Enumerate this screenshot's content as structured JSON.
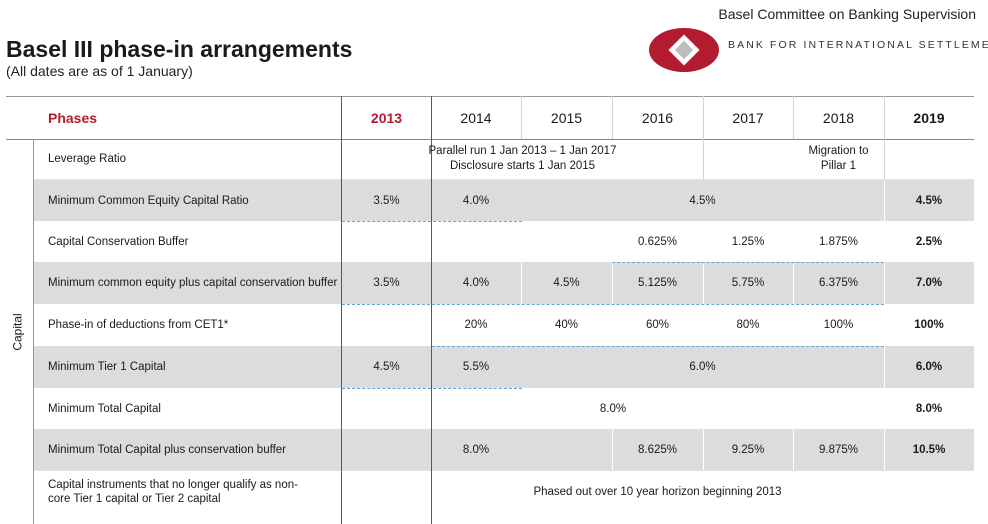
{
  "header": {
    "committee": "Basel Committee on Banking Supervision",
    "bis": "BANK FOR INTERNATIONAL SETTLEMENTS",
    "title": "Basel III phase-in arrangements",
    "subtitle": "(All dates are as of 1 January)",
    "colors": {
      "accent": "#b31b30",
      "band": "#dcdcdc",
      "dash": "#5aa7d8"
    }
  },
  "table": {
    "phases_label": "Phases",
    "years": [
      "2013",
      "2014",
      "2015",
      "2016",
      "2017",
      "2018",
      "2019"
    ],
    "group_label": "Capital",
    "rows": [
      {
        "label": "Leverage Ratio",
        "spans": [
          "Parallel run 1 Jan 2013 – 1 Jan 2017\nDisclosure starts 1 Jan 2015",
          "Migration to\nPillar 1"
        ]
      },
      {
        "label": "Minimum Common Equity Capital Ratio",
        "values": [
          "3.5%",
          "4.0%",
          "4.5%"
        ],
        "final": "4.5%"
      },
      {
        "label": "Capital Conservation Buffer",
        "values": [
          "0.625%",
          "1.25%",
          "1.875%"
        ],
        "final": "2.5%"
      },
      {
        "label": "Minimum common equity plus capital conservation buffer",
        "values": [
          "3.5%",
          "4.0%",
          "4.5%",
          "5.125%",
          "5.75%",
          "6.375%"
        ],
        "final": "7.0%"
      },
      {
        "label": "Phase-in of deductions from CET1*",
        "values": [
          "20%",
          "40%",
          "60%",
          "80%",
          "100%"
        ],
        "final": "100%"
      },
      {
        "label": "Minimum Tier 1 Capital",
        "values": [
          "4.5%",
          "5.5%",
          "6.0%"
        ],
        "final": "6.0%"
      },
      {
        "label": "Minimum Total Capital",
        "values": [
          "8.0%"
        ],
        "final": "8.0%"
      },
      {
        "label": "Minimum Total Capital plus conservation buffer",
        "values": [
          "8.0%",
          "8.625%",
          "9.25%",
          "9.875%"
        ],
        "final": "10.5%"
      },
      {
        "label": "Capital instruments that no longer qualify as non-core Tier 1 capital or Tier 2 capital",
        "span": "Phased out over 10 year horizon beginning 2013"
      }
    ]
  }
}
